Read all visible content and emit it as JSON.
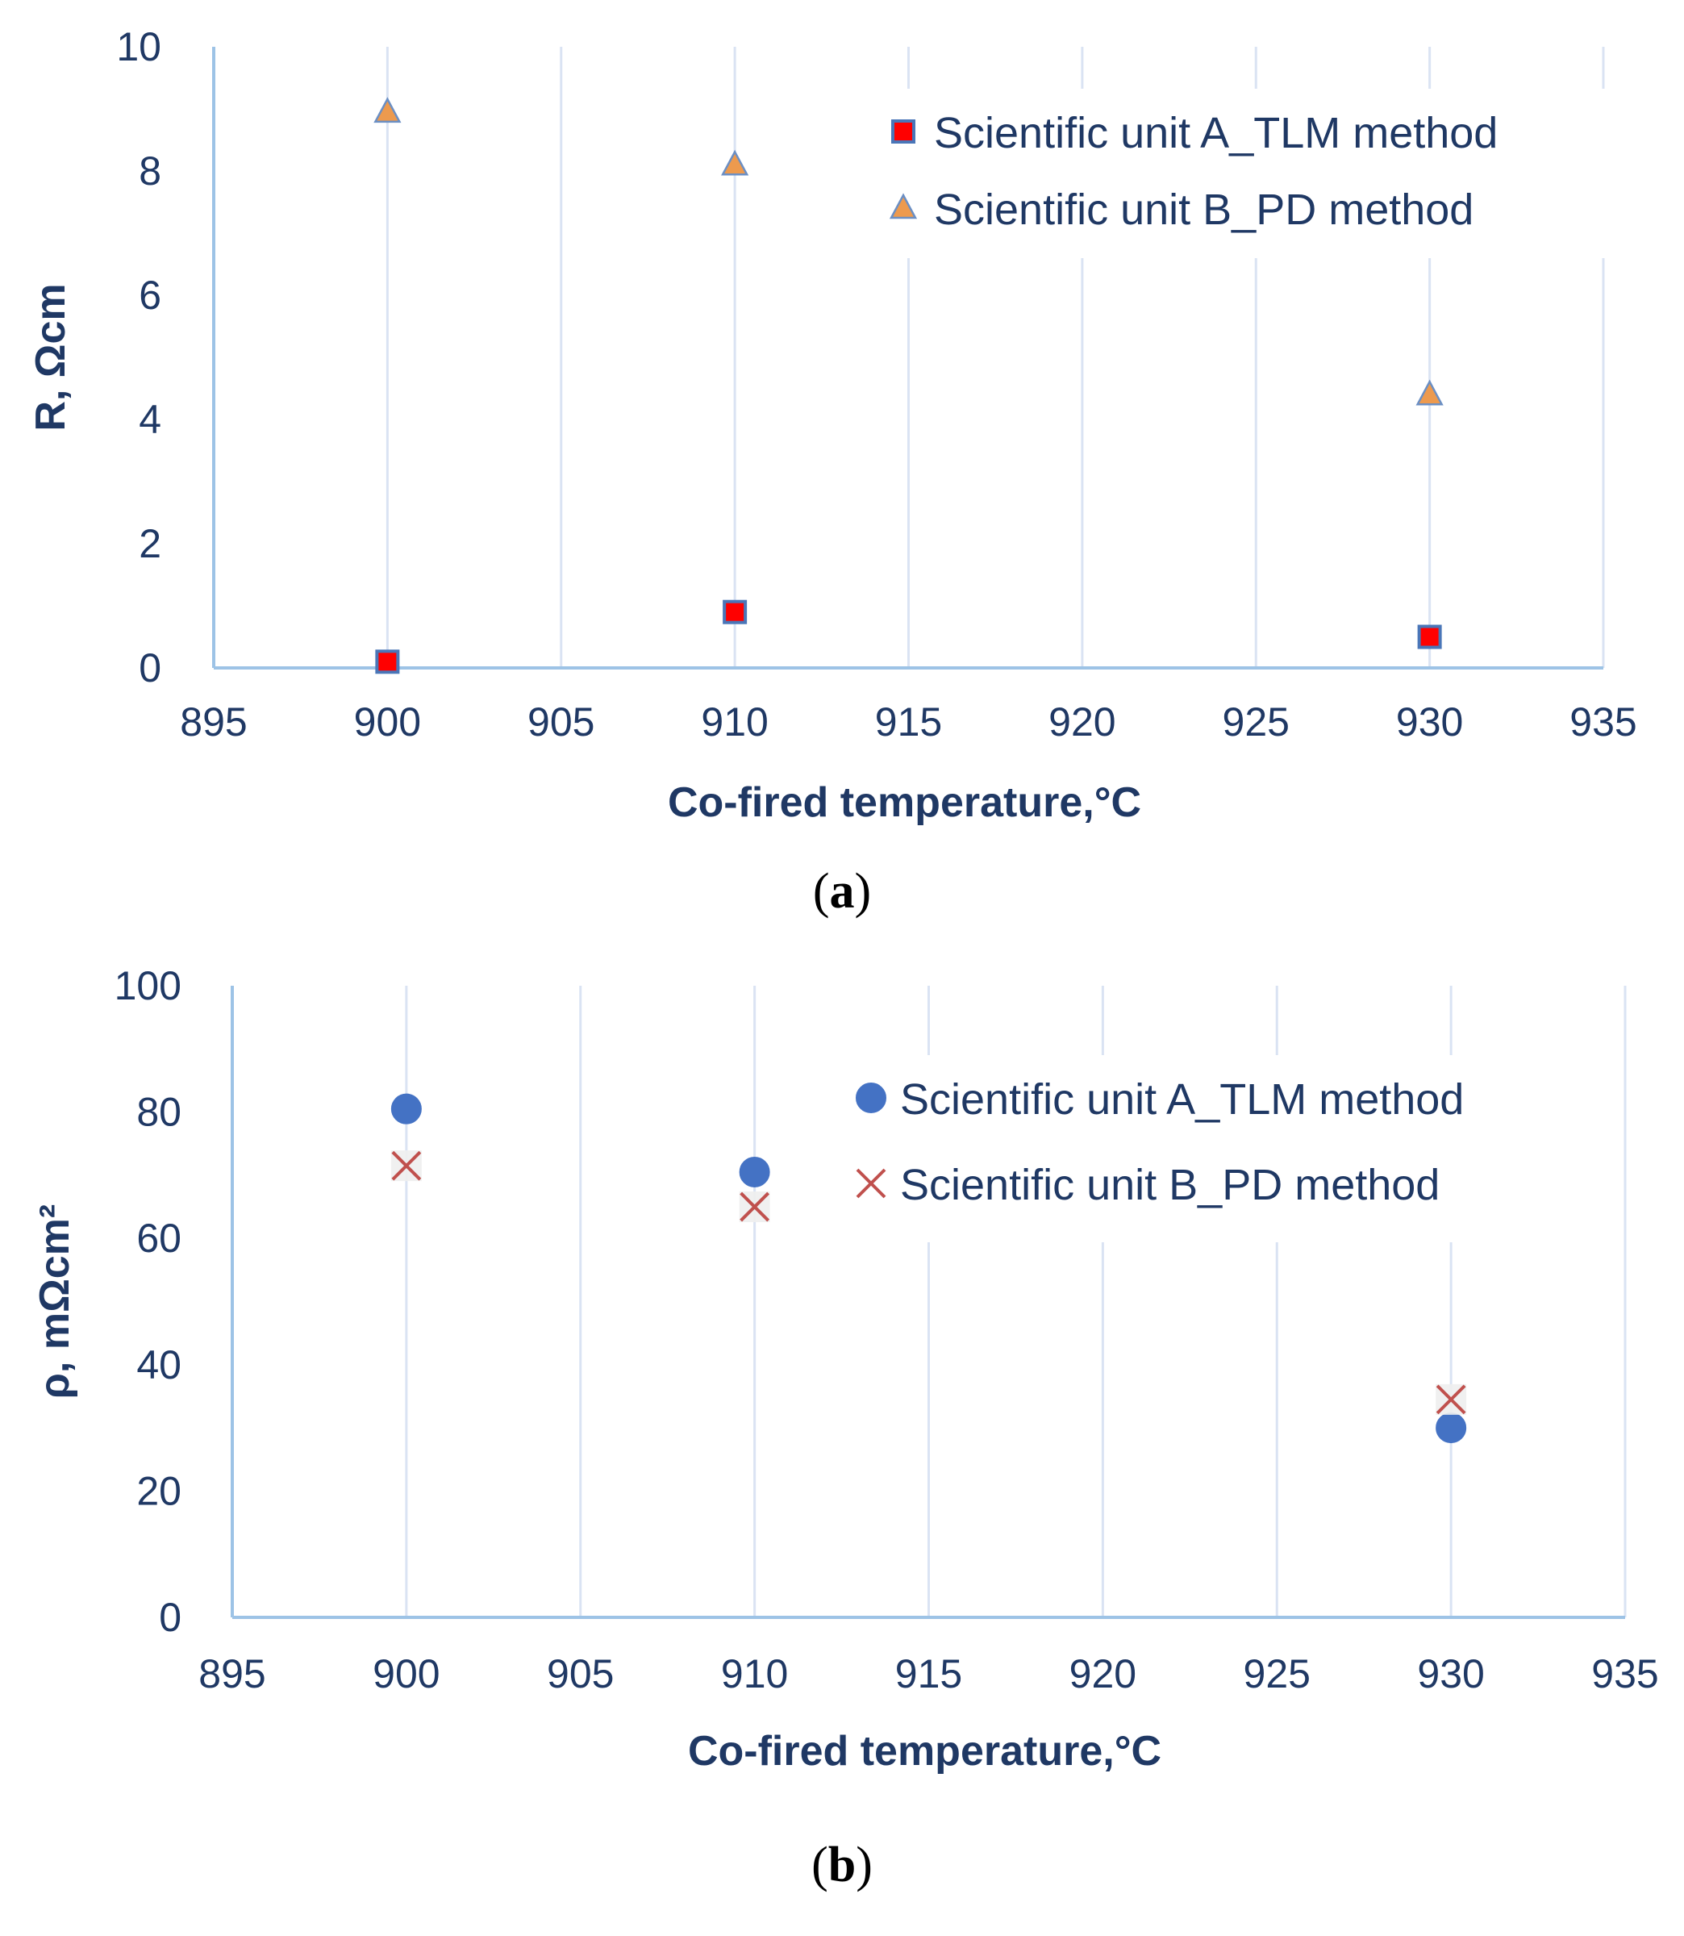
{
  "chart_data": [
    {
      "type": "scatter",
      "panel_label": "a",
      "title": "",
      "xlabel": "Co-fired temperature,°C",
      "ylabel": "R, Ωcm",
      "xlim": [
        895,
        935
      ],
      "ylim": [
        0,
        10
      ],
      "xticks": [
        895,
        900,
        905,
        910,
        915,
        920,
        925,
        930,
        935
      ],
      "yticks": [
        0,
        2,
        4,
        6,
        8,
        10
      ],
      "grid": "vertical",
      "legend_position": "top-right",
      "series": [
        {
          "name": "Scientific unit A_TLM method",
          "marker": "square",
          "color": "#ff0000",
          "edge_color": "#4a76b8",
          "x": [
            900,
            910,
            930
          ],
          "y": [
            0.1,
            0.9,
            0.5
          ]
        },
        {
          "name": "Scientific unit B_PD method",
          "marker": "triangle",
          "color": "#ed9a4e",
          "edge_color": "#6b8fc4",
          "x": [
            900,
            910,
            930
          ],
          "y": [
            8.95,
            8.1,
            4.4
          ]
        }
      ]
    },
    {
      "type": "scatter",
      "panel_label": "b",
      "title": "",
      "xlabel": "Co-fired temperature,°C",
      "ylabel": "ρ, mΩcm²",
      "xlim": [
        895,
        935
      ],
      "ylim": [
        0,
        100
      ],
      "xticks": [
        895,
        900,
        905,
        910,
        915,
        920,
        925,
        930,
        935
      ],
      "yticks": [
        0,
        20,
        40,
        60,
        80,
        100
      ],
      "grid": "vertical",
      "legend_position": "top-right",
      "series": [
        {
          "name": "Scientific unit A_TLM method",
          "marker": "circle",
          "color": "#4472c4",
          "edge_color": "#4472c4",
          "x": [
            900,
            910,
            930
          ],
          "y": [
            80.5,
            70.5,
            30
          ]
        },
        {
          "name": "Scientific unit B_PD method",
          "marker": "x",
          "color": "#c0504d",
          "edge_color": "#c0504d",
          "x": [
            900,
            910,
            930
          ],
          "y": [
            71.5,
            65,
            34.5
          ]
        }
      ]
    }
  ],
  "colors": {
    "axis": "#9dc3e6",
    "grid": "#dae3f3",
    "text": "#1f3864"
  }
}
